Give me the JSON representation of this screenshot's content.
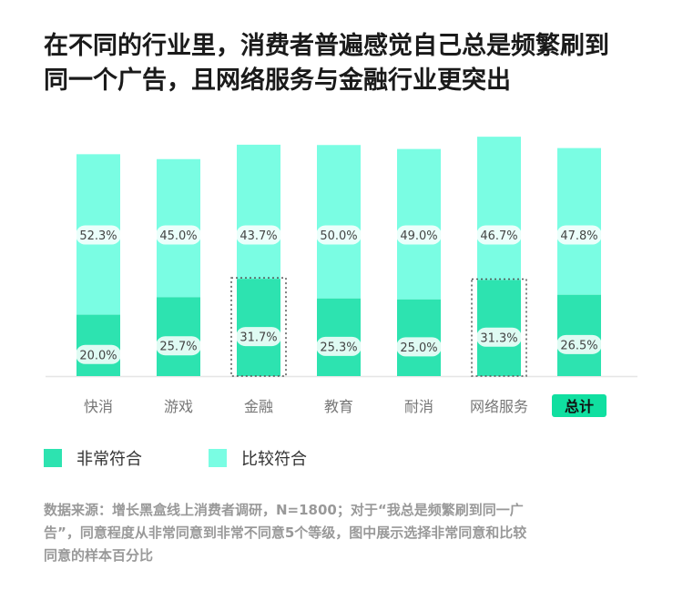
{
  "title_lines": [
    "在不同的行业里，消费者普遍感觉自己总是频繁刷到",
    "同一个广告，且网络服务与金融行业更突出"
  ],
  "source_lines": [
    "数据来源：增长黑盒线上消费者调研，N=1800；对于“我总是频繁刷到同一广",
    "告”，同意程度从非常同意到非常不同意5个等级，图中展示选择非常同意和比较",
    "同意的样本百分比"
  ],
  "legend": [
    {
      "label": "非常符合",
      "color": "#2de3b0"
    },
    {
      "label": "比较符合",
      "color": "#7afde3"
    }
  ],
  "chart_data": {
    "type": "bar",
    "stacked": true,
    "categories": [
      "快消",
      "游戏",
      "金融",
      "教育",
      "耐消",
      "网络服务",
      "总计"
    ],
    "series": [
      {
        "name": "非常符合",
        "values": [
          20.0,
          25.7,
          31.7,
          25.3,
          25.0,
          31.3,
          26.5
        ],
        "labels": [
          "20.0%",
          "25.7%",
          "31.7%",
          "25.3%",
          "25.0%",
          "31.3%",
          "26.5%"
        ],
        "color": "#2de3b0"
      },
      {
        "name": "比较符合",
        "values": [
          52.3,
          45.0,
          43.7,
          50.0,
          49.0,
          46.7,
          47.8
        ],
        "labels": [
          "52.3%",
          "45.0%",
          "43.7%",
          "50.0%",
          "49.0%",
          "46.7%",
          "47.8%"
        ],
        "color": "#7afde3"
      }
    ],
    "highlighted_categories": [
      "金融",
      "网络服务"
    ],
    "emphasized_category": "总计",
    "ylim": [
      0,
      80
    ]
  }
}
